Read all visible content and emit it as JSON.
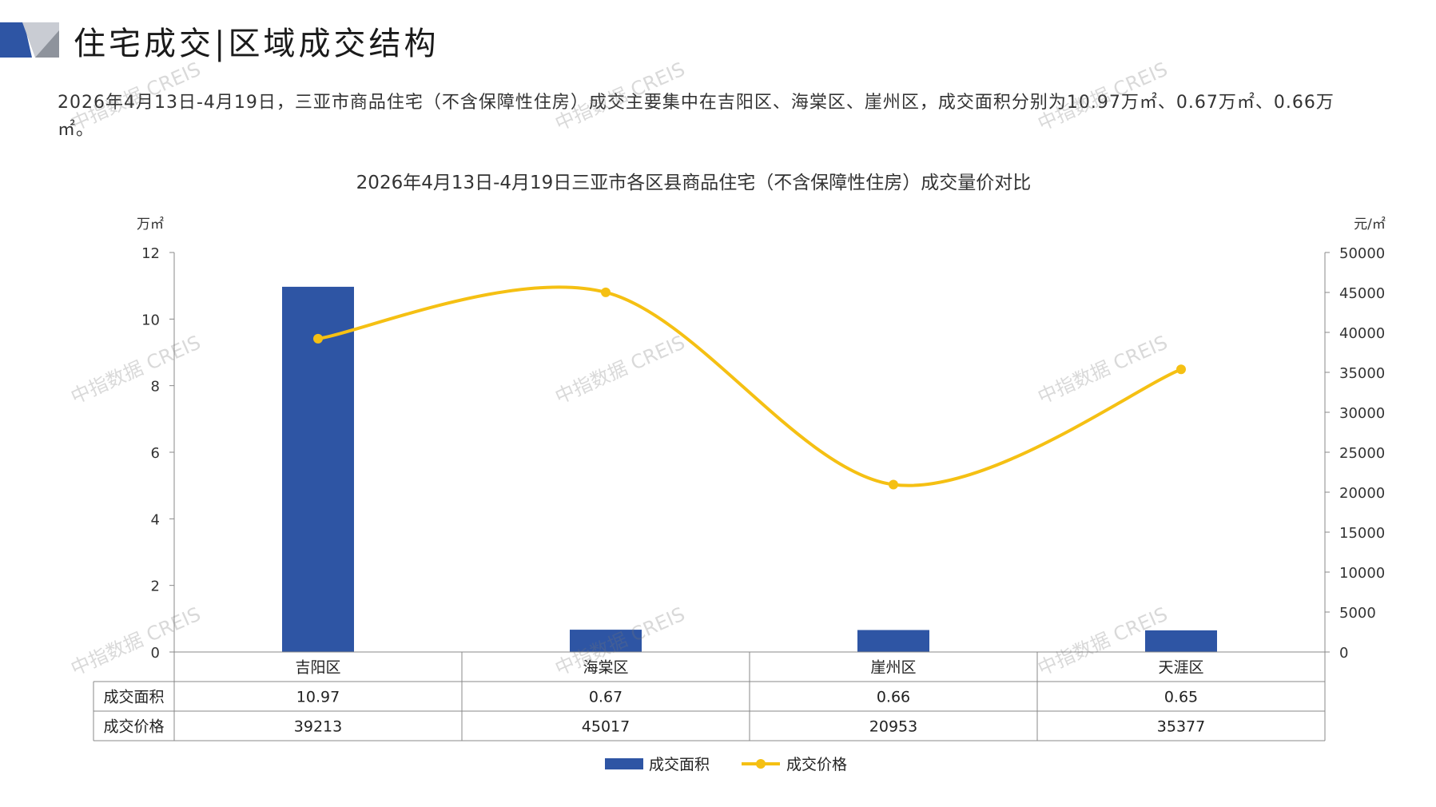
{
  "page": {
    "title": "住宅成交|区域成交结构",
    "summary": "2026年4月13日-4月19日，三亚市商品住宅（不含保障性住房）成交主要集中在吉阳区、海棠区、崖州区，成交面积分别为10.97万㎡、0.67万㎡、0.66万㎡。",
    "watermark": "中指数据 CREIS",
    "colors": {
      "bar": "#2E55A4",
      "line": "#F5C013",
      "grid": "#888888"
    }
  },
  "chart_data": {
    "type": "bar",
    "title": "2026年4月13日-4月19日三亚市各区县商品住宅（不含保障性住房）成交量价对比",
    "categories": [
      "吉阳区",
      "海棠区",
      "崖州区",
      "天涯区"
    ],
    "series": [
      {
        "name": "成交面积",
        "type": "bar",
        "axis": "left",
        "values": [
          10.97,
          0.67,
          0.66,
          0.65
        ],
        "labels": [
          "10.97",
          "0.67",
          "0.66",
          "0.65"
        ]
      },
      {
        "name": "成交价格",
        "type": "line",
        "axis": "right",
        "values": [
          39213,
          45017,
          20953,
          35377
        ],
        "labels": [
          "39213",
          "45017",
          "20953",
          "35377"
        ]
      }
    ],
    "ylabel_left": "万㎡",
    "ylabel_right": "元/㎡",
    "ylim_left": [
      0,
      12
    ],
    "ylim_right": [
      0,
      50000
    ],
    "yticks_left": [
      0,
      2,
      4,
      6,
      8,
      10,
      12
    ],
    "yticks_right": [
      0,
      5000,
      10000,
      15000,
      20000,
      25000,
      30000,
      35000,
      40000,
      45000,
      50000
    ],
    "legend_position": "bottom",
    "data_table": true
  }
}
